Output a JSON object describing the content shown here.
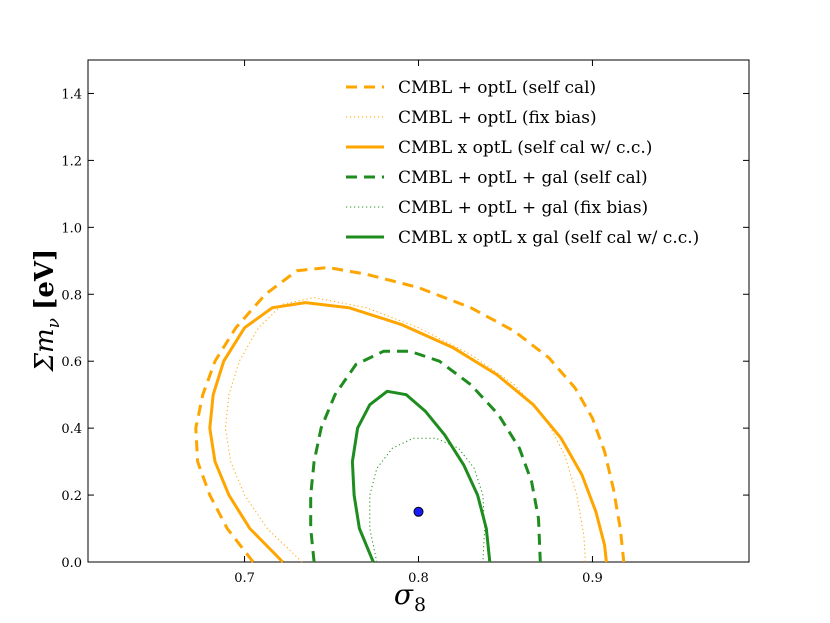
{
  "chart_data": {
    "type": "line",
    "title": "",
    "xlabel": "σ",
    "xlabel_sub": "8",
    "ylabel": "Σm",
    "ylabel_sub": "ν",
    "ylabel_unit": "[eV]",
    "xlim": [
      0.61,
      0.99
    ],
    "ylim": [
      0.0,
      1.5
    ],
    "xticks": [
      0.7,
      0.8,
      0.9
    ],
    "xtick_labels": [
      "0.7",
      "0.8",
      "0.9"
    ],
    "yticks": [
      0.0,
      0.2,
      0.4,
      0.6,
      0.8,
      1.0,
      1.2,
      1.4
    ],
    "ytick_labels": [
      "0.0",
      "0.2",
      "0.4",
      "0.6",
      "0.8",
      "1.0",
      "1.2",
      "1.4"
    ],
    "grid": false,
    "legend_position": "top-right",
    "fiducial": {
      "x": 0.8,
      "y": 0.15,
      "color": "#1a1aff"
    },
    "series": [
      {
        "name": "CMBL + optL (self cal)",
        "color": "#ffa500",
        "style": "dashed",
        "width": 3,
        "points": [
          [
            0.705,
            0.0
          ],
          [
            0.69,
            0.1
          ],
          [
            0.68,
            0.2
          ],
          [
            0.673,
            0.3
          ],
          [
            0.672,
            0.4
          ],
          [
            0.676,
            0.5
          ],
          [
            0.683,
            0.6
          ],
          [
            0.695,
            0.7
          ],
          [
            0.712,
            0.8
          ],
          [
            0.73,
            0.87
          ],
          [
            0.748,
            0.88
          ],
          [
            0.77,
            0.86
          ],
          [
            0.8,
            0.82
          ],
          [
            0.83,
            0.76
          ],
          [
            0.855,
            0.69
          ],
          [
            0.875,
            0.61
          ],
          [
            0.89,
            0.52
          ],
          [
            0.9,
            0.43
          ],
          [
            0.907,
            0.33
          ],
          [
            0.912,
            0.22
          ],
          [
            0.916,
            0.1
          ],
          [
            0.918,
            0.0
          ]
        ]
      },
      {
        "name": "CMBL + optL (fix bias)",
        "color": "#ffa500",
        "style": "dotted",
        "width": 1,
        "points": [
          [
            0.733,
            0.0
          ],
          [
            0.713,
            0.1
          ],
          [
            0.7,
            0.2
          ],
          [
            0.692,
            0.3
          ],
          [
            0.689,
            0.4
          ],
          [
            0.691,
            0.5
          ],
          [
            0.697,
            0.6
          ],
          [
            0.708,
            0.7
          ],
          [
            0.722,
            0.77
          ],
          [
            0.74,
            0.79
          ],
          [
            0.77,
            0.76
          ],
          [
            0.8,
            0.7
          ],
          [
            0.83,
            0.62
          ],
          [
            0.855,
            0.53
          ],
          [
            0.873,
            0.43
          ],
          [
            0.884,
            0.32
          ],
          [
            0.891,
            0.2
          ],
          [
            0.895,
            0.08
          ],
          [
            0.896,
            0.0
          ]
        ]
      },
      {
        "name": "CMBL x optL (self cal w/ c.c.)",
        "color": "#ffa500",
        "style": "solid",
        "width": 3,
        "points": [
          [
            0.722,
            0.0
          ],
          [
            0.703,
            0.1
          ],
          [
            0.691,
            0.2
          ],
          [
            0.683,
            0.3
          ],
          [
            0.68,
            0.4
          ],
          [
            0.682,
            0.5
          ],
          [
            0.688,
            0.6
          ],
          [
            0.7,
            0.7
          ],
          [
            0.716,
            0.76
          ],
          [
            0.735,
            0.775
          ],
          [
            0.76,
            0.76
          ],
          [
            0.79,
            0.71
          ],
          [
            0.82,
            0.64
          ],
          [
            0.845,
            0.56
          ],
          [
            0.866,
            0.47
          ],
          [
            0.882,
            0.37
          ],
          [
            0.894,
            0.26
          ],
          [
            0.902,
            0.15
          ],
          [
            0.907,
            0.05
          ],
          [
            0.908,
            0.0
          ]
        ]
      },
      {
        "name": "CMBL + optL + gal (self cal)",
        "color": "#1e8c1e",
        "style": "dashed",
        "width": 3,
        "points": [
          [
            0.74,
            0.0
          ],
          [
            0.738,
            0.1
          ],
          [
            0.738,
            0.2
          ],
          [
            0.74,
            0.3
          ],
          [
            0.744,
            0.4
          ],
          [
            0.752,
            0.5
          ],
          [
            0.764,
            0.59
          ],
          [
            0.78,
            0.63
          ],
          [
            0.795,
            0.63
          ],
          [
            0.812,
            0.6
          ],
          [
            0.83,
            0.53
          ],
          [
            0.846,
            0.44
          ],
          [
            0.858,
            0.34
          ],
          [
            0.865,
            0.24
          ],
          [
            0.869,
            0.13
          ],
          [
            0.87,
            0.0
          ]
        ]
      },
      {
        "name": "CMBL + optL + gal (fix bias)",
        "color": "#1e8c1e",
        "style": "dotted",
        "width": 1,
        "points": [
          [
            0.776,
            0.0
          ],
          [
            0.772,
            0.1
          ],
          [
            0.772,
            0.2
          ],
          [
            0.776,
            0.28
          ],
          [
            0.785,
            0.34
          ],
          [
            0.797,
            0.37
          ],
          [
            0.81,
            0.37
          ],
          [
            0.823,
            0.34
          ],
          [
            0.832,
            0.28
          ],
          [
            0.837,
            0.2
          ],
          [
            0.838,
            0.1
          ],
          [
            0.837,
            0.0
          ]
        ]
      },
      {
        "name": "CMBL x optL x gal (self cal w/ c.c.)",
        "color": "#1e8c1e",
        "style": "solid",
        "width": 3,
        "points": [
          [
            0.774,
            0.0
          ],
          [
            0.766,
            0.1
          ],
          [
            0.763,
            0.2
          ],
          [
            0.762,
            0.3
          ],
          [
            0.765,
            0.4
          ],
          [
            0.772,
            0.47
          ],
          [
            0.782,
            0.51
          ],
          [
            0.793,
            0.5
          ],
          [
            0.804,
            0.45
          ],
          [
            0.815,
            0.38
          ],
          [
            0.826,
            0.29
          ],
          [
            0.834,
            0.2
          ],
          [
            0.839,
            0.1
          ],
          [
            0.841,
            0.0
          ]
        ]
      }
    ]
  }
}
